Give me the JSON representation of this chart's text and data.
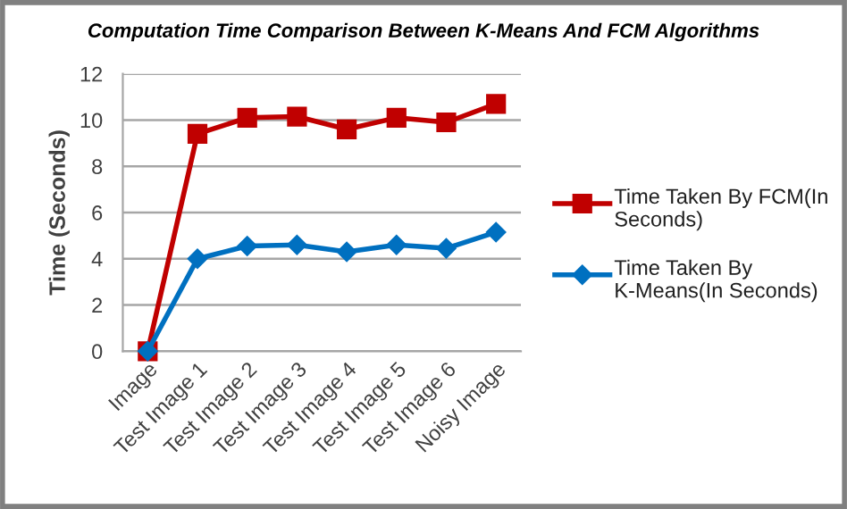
{
  "chart_data": {
    "type": "line",
    "title": "Computation Time Comparison Between K-Means And FCM Algorithms",
    "ylabel": "Time (Seconds)",
    "categories": [
      "Image",
      "Test Image 1",
      "Test Image 2",
      "Test Image 3",
      "Test Image 4",
      "Test Image 5",
      "Test Image 6",
      "Noisy Image"
    ],
    "series": [
      {
        "name": "Time Taken By FCM(In Seconds)",
        "color": "#c00000",
        "marker": "square",
        "values": [
          0,
          9.4,
          10.1,
          10.15,
          9.6,
          10.1,
          9.9,
          10.7
        ]
      },
      {
        "name": "Time Taken By K-Means(In Seconds)",
        "color": "#0070c0",
        "marker": "diamond",
        "values": [
          0,
          4.0,
          4.55,
          4.6,
          4.3,
          4.6,
          4.45,
          5.15
        ]
      }
    ],
    "ylim": [
      0,
      12
    ],
    "yticks": [
      0,
      2,
      4,
      6,
      8,
      10,
      12
    ],
    "grid": "y",
    "legend": "right"
  }
}
